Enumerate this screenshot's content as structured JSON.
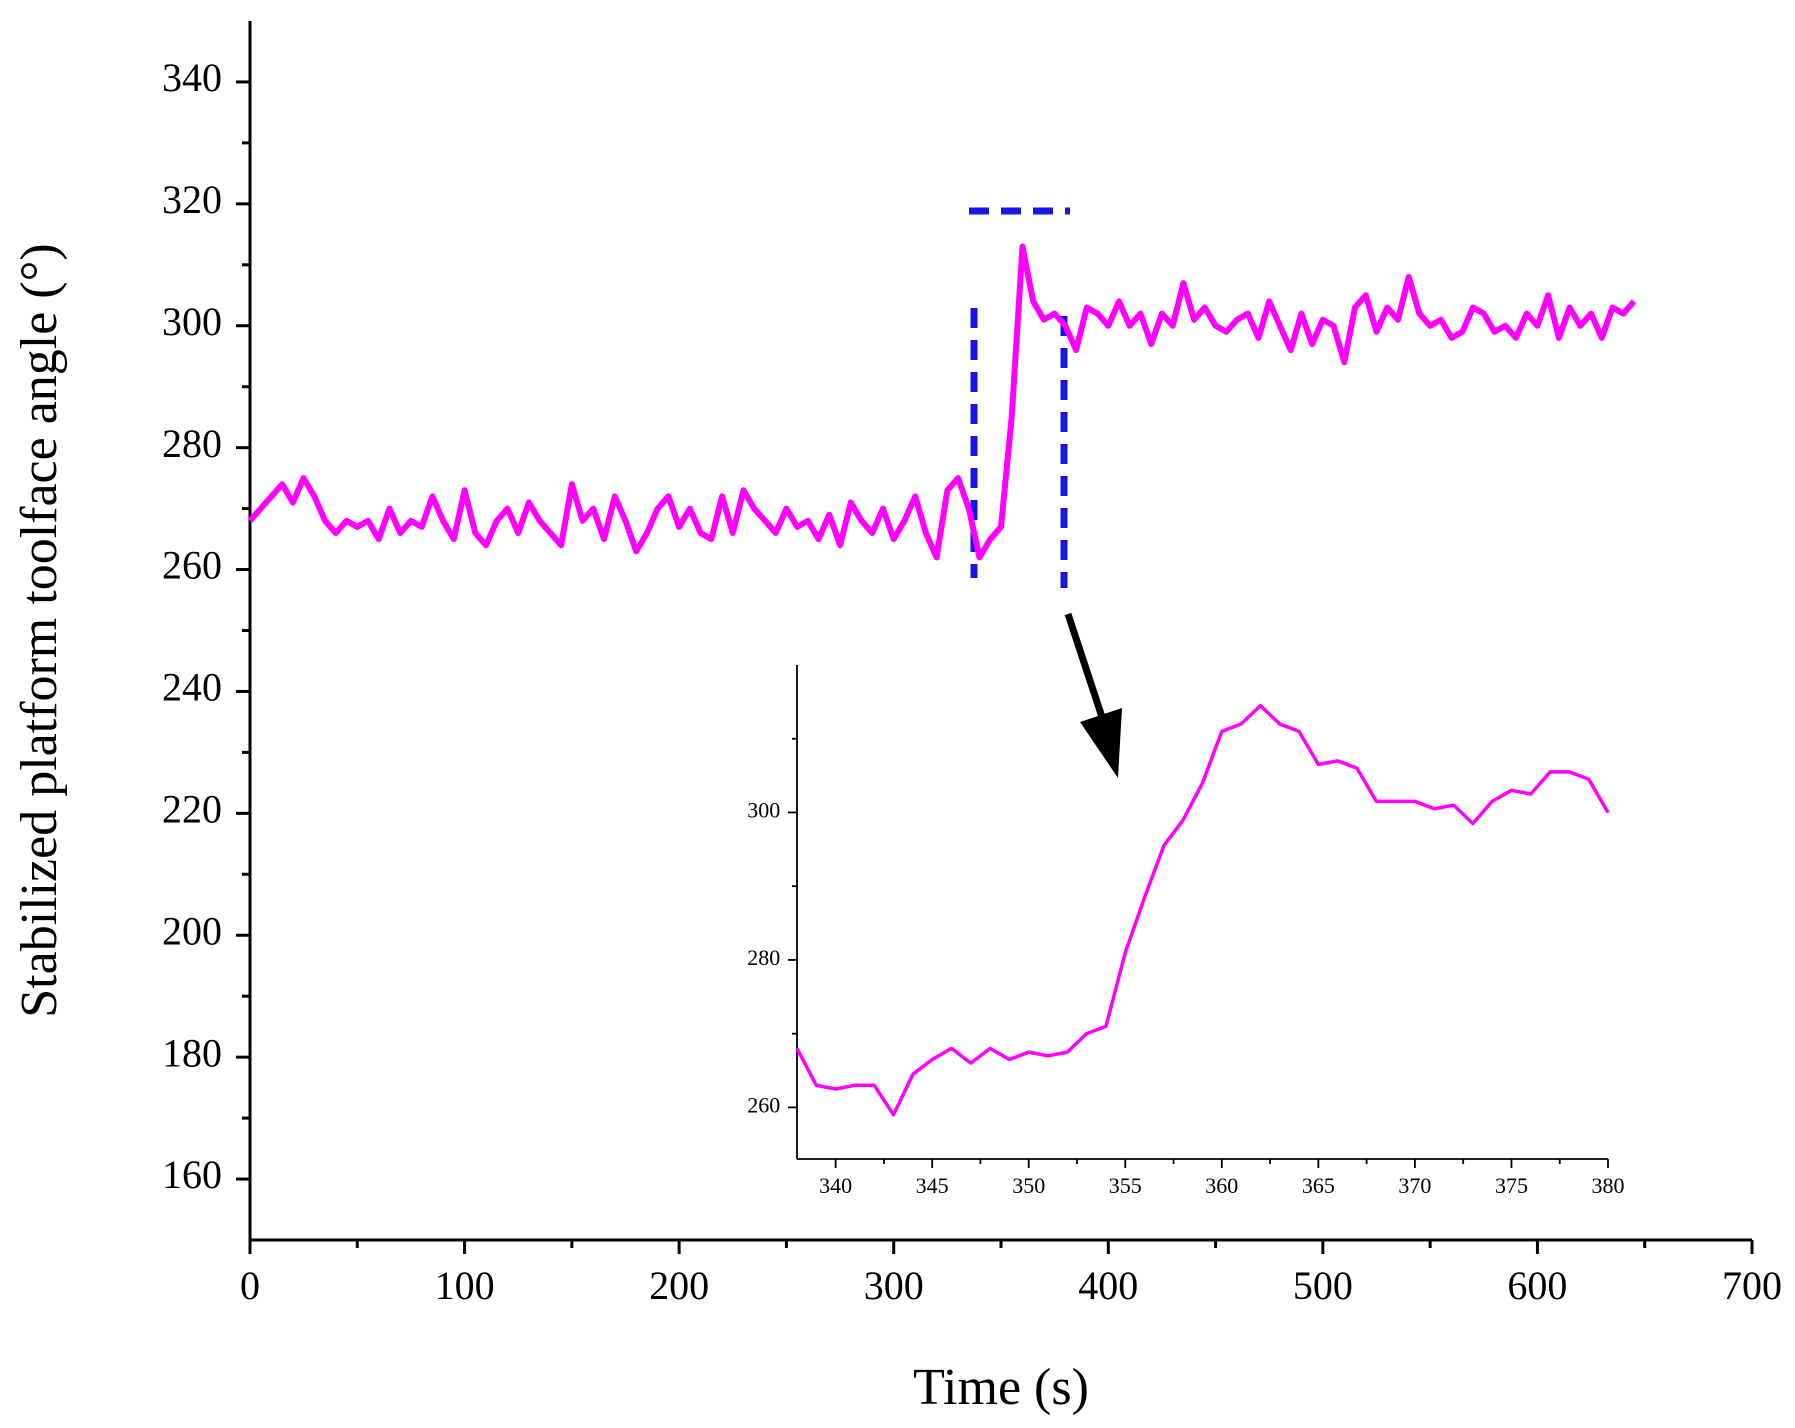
{
  "chart_data": [
    {
      "type": "line",
      "xlabel": "Time (s)",
      "ylabel": "Stabilized platform toolface angle (°)",
      "color": "#ff00ff",
      "x": [
        0,
        5,
        10,
        15,
        20,
        25,
        30,
        35,
        40,
        45,
        50,
        55,
        60,
        65,
        70,
        75,
        80,
        85,
        90,
        95,
        100,
        105,
        110,
        115,
        120,
        125,
        130,
        135,
        140,
        145,
        150,
        155,
        160,
        165,
        170,
        175,
        180,
        185,
        190,
        195,
        200,
        205,
        210,
        215,
        220,
        225,
        230,
        235,
        240,
        245,
        250,
        255,
        260,
        265,
        270,
        275,
        280,
        285,
        290,
        295,
        300,
        305,
        310,
        315,
        320,
        325,
        330,
        335,
        340,
        345,
        350,
        355,
        360,
        365,
        370,
        375,
        380,
        385,
        390,
        395,
        400,
        405,
        410,
        415,
        420,
        425,
        430,
        435,
        440,
        445,
        450,
        455,
        460,
        465,
        470,
        475,
        480,
        485,
        490,
        495,
        500,
        505,
        510,
        515,
        520,
        525,
        530,
        535,
        540,
        545,
        550,
        555,
        560,
        565,
        570,
        575,
        580,
        585,
        590,
        595,
        600,
        605,
        610,
        615,
        620,
        625,
        630,
        635,
        640,
        645
      ],
      "values": [
        268,
        270,
        272,
        274,
        271,
        275,
        272,
        268,
        266,
        268,
        267,
        268,
        265,
        270,
        266,
        268,
        267,
        272,
        268,
        265,
        273,
        266,
        264,
        268,
        270,
        266,
        271,
        268,
        266,
        264,
        274,
        268,
        270,
        265,
        272,
        268,
        263,
        266,
        270,
        272,
        267,
        270,
        266,
        265,
        272,
        266,
        273,
        270,
        268,
        266,
        270,
        267,
        268,
        265,
        269,
        264,
        271,
        268,
        266,
        270,
        265,
        268,
        272,
        266,
        262,
        273,
        275,
        270,
        262,
        265,
        267,
        285,
        313,
        304,
        301,
        302,
        300,
        296,
        303,
        302,
        300,
        304,
        300,
        302,
        297,
        302,
        300,
        307,
        301,
        303,
        300,
        299,
        301,
        302,
        298,
        304,
        300,
        296,
        302,
        297,
        301,
        300,
        294,
        303,
        305,
        299,
        303,
        301,
        308,
        302,
        300,
        301,
        298,
        299,
        303,
        302,
        299,
        300,
        298,
        302,
        300,
        305,
        298,
        303,
        300,
        302,
        298,
        303,
        302,
        304
      ],
      "xlim": [
        0,
        700
      ],
      "ylim": [
        150,
        350
      ],
      "xticks": [
        0,
        100,
        200,
        300,
        400,
        500,
        600,
        700
      ],
      "yticks": [
        160,
        180,
        200,
        220,
        240,
        260,
        280,
        300,
        320,
        340
      ],
      "xminor": [
        50,
        150,
        250,
        350,
        450,
        550,
        650
      ],
      "yminor": [
        170,
        190,
        210,
        230,
        250,
        270,
        290,
        310,
        330
      ]
    },
    {
      "type": "line",
      "color": "#ff00ff",
      "x": [
        338,
        339,
        340,
        341,
        342,
        343,
        344,
        345,
        346,
        347,
        348,
        349,
        350,
        351,
        352,
        353,
        354,
        355,
        356,
        357,
        358,
        359,
        360,
        361,
        362,
        363,
        364,
        365,
        366,
        367,
        368,
        369,
        370,
        371,
        372,
        373,
        374,
        375,
        376,
        377,
        378,
        379,
        380
      ],
      "values": [
        268,
        263,
        262.5,
        263,
        263,
        259,
        264.5,
        266.5,
        268,
        266,
        268,
        266.5,
        267.5,
        267,
        267.5,
        270,
        271,
        281,
        288.5,
        295.5,
        299,
        304,
        311,
        312,
        314.5,
        312,
        311,
        306.5,
        307,
        306,
        301.5,
        301.5,
        301.5,
        300.5,
        301,
        298.5,
        301.5,
        303,
        302.5,
        305.5,
        305.5,
        304.5,
        300
      ],
      "xlim": [
        338,
        380
      ],
      "ylim": [
        253,
        320
      ],
      "xticks": [
        340,
        345,
        350,
        355,
        360,
        365,
        370,
        375,
        380
      ],
      "yticks": [
        260,
        280,
        300
      ],
      "xminor": [
        342.5,
        347.5,
        352.5,
        357.5,
        362.5,
        367.5,
        372.5,
        377.5
      ],
      "yminor": [
        270,
        290,
        310
      ]
    }
  ]
}
